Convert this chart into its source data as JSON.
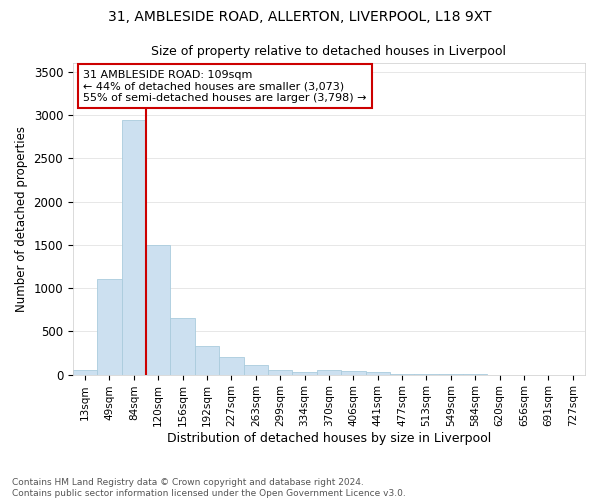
{
  "title_line1": "31, AMBLESIDE ROAD, ALLERTON, LIVERPOOL, L18 9XT",
  "title_line2": "Size of property relative to detached houses in Liverpool",
  "xlabel": "Distribution of detached houses by size in Liverpool",
  "ylabel": "Number of detached properties",
  "annotation_line1": "31 AMBLESIDE ROAD: 109sqm",
  "annotation_line2": "← 44% of detached houses are smaller (3,073)",
  "annotation_line3": "55% of semi-detached houses are larger (3,798) →",
  "footnote_line1": "Contains HM Land Registry data © Crown copyright and database right 2024.",
  "footnote_line2": "Contains public sector information licensed under the Open Government Licence v3.0.",
  "bar_color": "#cce0f0",
  "bar_edge_color": "#aaccdd",
  "vline_color": "#cc0000",
  "annotation_box_edge_color": "#cc0000",
  "annotation_box_face_color": "#ffffff",
  "background_color": "#ffffff",
  "grid_color": "#dddddd",
  "categories": [
    "13sqm",
    "49sqm",
    "84sqm",
    "120sqm",
    "156sqm",
    "192sqm",
    "227sqm",
    "263sqm",
    "299sqm",
    "334sqm",
    "370sqm",
    "406sqm",
    "441sqm",
    "477sqm",
    "513sqm",
    "549sqm",
    "584sqm",
    "620sqm",
    "656sqm",
    "691sqm",
    "727sqm"
  ],
  "values": [
    50,
    1100,
    2950,
    1500,
    650,
    325,
    200,
    110,
    50,
    25,
    50,
    40,
    30,
    5,
    3,
    2,
    2,
    1,
    1,
    1,
    0
  ],
  "ylim": [
    0,
    3600
  ],
  "yticks": [
    0,
    500,
    1000,
    1500,
    2000,
    2500,
    3000,
    3500
  ],
  "vline_x": 2.5,
  "figsize": [
    6.0,
    5.0
  ],
  "dpi": 100
}
